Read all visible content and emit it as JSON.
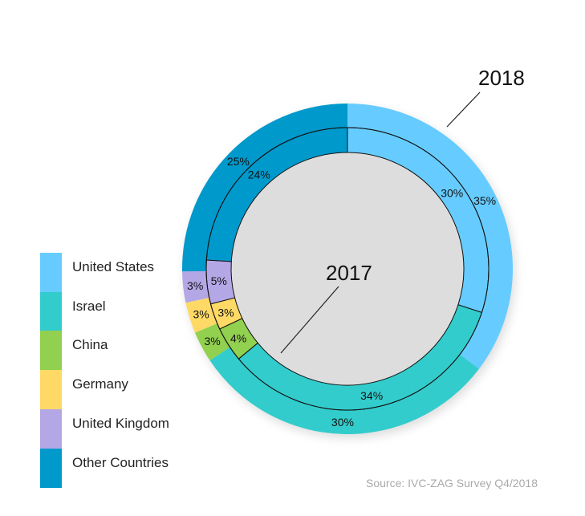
{
  "chart_data": {
    "type": "pie",
    "subtype": "nested-donut",
    "categories": [
      "United States",
      "Israel",
      "China",
      "Germany",
      "United Kingdom",
      "Other Countries"
    ],
    "colors": [
      "#66ccff",
      "#33cccc",
      "#92d050",
      "#ffd966",
      "#b4a7e5",
      "#0099cc"
    ],
    "series": [
      {
        "name": "2018",
        "ring": "outer",
        "values": [
          35,
          30,
          3,
          3,
          3,
          25
        ]
      },
      {
        "name": "2017",
        "ring": "inner",
        "values": [
          30,
          34,
          4,
          3,
          5,
          24
        ]
      }
    ],
    "annotations": [
      "2018",
      "2017"
    ],
    "legend_position": "left-bottom"
  },
  "source": "Source: IVC-ZAG Survey Q4/2018"
}
